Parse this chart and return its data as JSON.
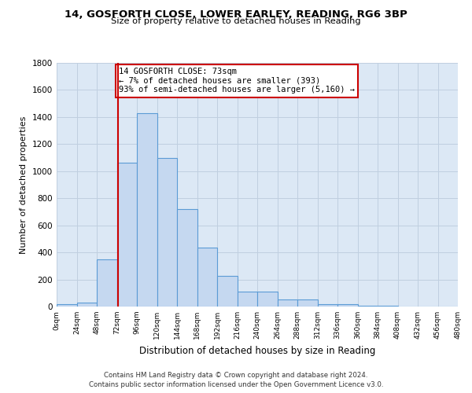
{
  "title": "14, GOSFORTH CLOSE, LOWER EARLEY, READING, RG6 3BP",
  "subtitle": "Size of property relative to detached houses in Reading",
  "xlabel": "Distribution of detached houses by size in Reading",
  "ylabel": "Number of detached properties",
  "bar_color": "#c5d8f0",
  "bar_edge_color": "#5b9bd5",
  "background_color": "#ffffff",
  "plot_bg_color": "#dce8f5",
  "grid_color": "#c0cfe0",
  "bin_edges": [
    0,
    24,
    48,
    72,
    96,
    120,
    144,
    168,
    192,
    216,
    240,
    264,
    288,
    312,
    336,
    360,
    384,
    408,
    432,
    456,
    480
  ],
  "bar_heights": [
    15,
    30,
    350,
    1060,
    1430,
    1095,
    720,
    435,
    225,
    110,
    110,
    55,
    50,
    20,
    20,
    5,
    8,
    0,
    0,
    0
  ],
  "vline_x": 73,
  "vline_color": "#cc0000",
  "annotation_text": "14 GOSFORTH CLOSE: 73sqm\n← 7% of detached houses are smaller (393)\n93% of semi-detached houses are larger (5,160) →",
  "annotation_box_color": "#ffffff",
  "annotation_box_edge": "#cc0000",
  "ylim": [
    0,
    1800
  ],
  "yticks": [
    0,
    200,
    400,
    600,
    800,
    1000,
    1200,
    1400,
    1600,
    1800
  ],
  "xtick_labels": [
    "0sqm",
    "24sqm",
    "48sqm",
    "72sqm",
    "96sqm",
    "120sqm",
    "144sqm",
    "168sqm",
    "192sqm",
    "216sqm",
    "240sqm",
    "264sqm",
    "288sqm",
    "312sqm",
    "336sqm",
    "360sqm",
    "384sqm",
    "408sqm",
    "432sqm",
    "456sqm",
    "480sqm"
  ],
  "footer_line1": "Contains HM Land Registry data © Crown copyright and database right 2024.",
  "footer_line2": "Contains public sector information licensed under the Open Government Licence v3.0."
}
